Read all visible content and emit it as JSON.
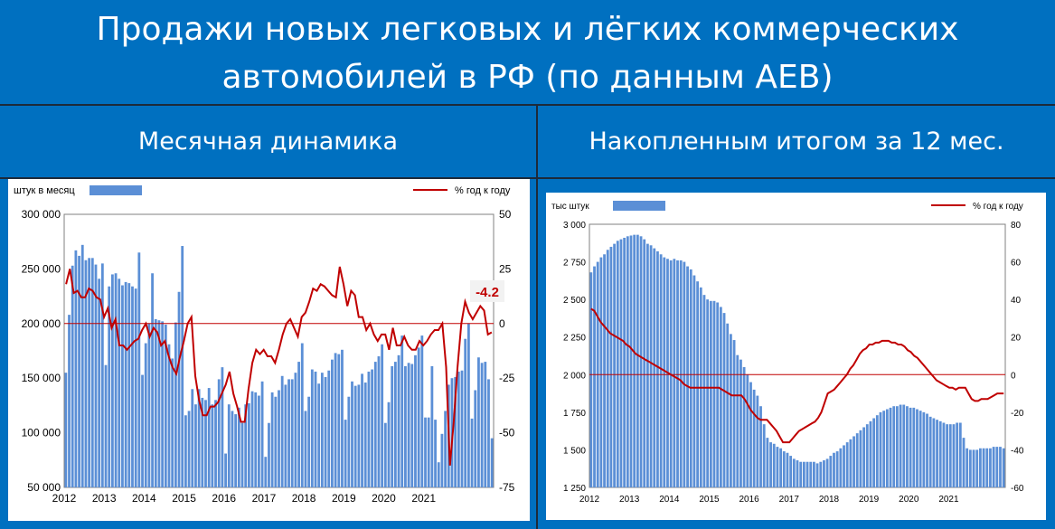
{
  "header": {
    "title_line1": "Продажи новых легковых и лёгких коммерческих",
    "title_line2": "автомобилей в РФ (по данным АЕВ)"
  },
  "left_subtitle": "Месячная динамика",
  "right_subtitle": "Накопленным итогом за 12 мес.",
  "colors": {
    "bar": "#5B8FD6",
    "line": "#C00000",
    "zero_line": "#C00000",
    "background": "#0070C0"
  },
  "chart_data": [
    {
      "type": "bar",
      "title": "",
      "legend_left": "штук в месяц",
      "legend_right": "% год к году",
      "x_ticks": [
        "2012",
        "2013",
        "2014",
        "2015",
        "2016",
        "2017",
        "2018",
        "2019",
        "2020",
        "2021"
      ],
      "y_left_ticks": [
        "300 000",
        "250 000",
        "200 000",
        "150 000",
        "100 000",
        "50 000"
      ],
      "y_right_ticks": [
        "50",
        "25",
        "0",
        "-25",
        "-50",
        "-75"
      ],
      "ylim_left": [
        50000,
        300000
      ],
      "ylim_right": [
        -75,
        50
      ],
      "annotation": "-4.2",
      "series": [
        {
          "name": "штук в месяц",
          "kind": "bar",
          "values": [
            155,
            208,
            253,
            267,
            262,
            272,
            258,
            260,
            260,
            254,
            241,
            255,
            162,
            234,
            245,
            246,
            241,
            235,
            238,
            237,
            234,
            232,
            265,
            153,
            182,
            200,
            246,
            204,
            203,
            202,
            199,
            181,
            168,
            201,
            229,
            271,
            116,
            120,
            140,
            126,
            140,
            132,
            130,
            141,
            126,
            130,
            149,
            160,
            81,
            126,
            120,
            117,
            123,
            109,
            126,
            127,
            138,
            137,
            134,
            147,
            78,
            109,
            137,
            133,
            139,
            152,
            144,
            149,
            149,
            155,
            165,
            182,
            120,
            133,
            158,
            156,
            145,
            155,
            151,
            157,
            167,
            173,
            172,
            176,
            112,
            133,
            147,
            143,
            144,
            154,
            146,
            156,
            158,
            165,
            170,
            181,
            109,
            128,
            161,
            165,
            171,
            189,
            161,
            164,
            163,
            171,
            178,
            189,
            114,
            114,
            161,
            112,
            73,
            99,
            120,
            144,
            150,
            151,
            156,
            157,
            186,
            200,
            113,
            139,
            169,
            164,
            165,
            149,
            95
          ]
        },
        {
          "name": "% год к году",
          "kind": "line",
          "values": [
            18,
            25,
            14,
            15,
            12,
            12,
            16,
            15,
            12,
            11,
            3,
            7,
            -2,
            2,
            -10,
            -10,
            -12,
            -10,
            -8,
            -7,
            -3,
            0,
            -6,
            -2,
            -4,
            -10,
            -8,
            -15,
            -20,
            -23,
            -15,
            -8,
            0,
            3,
            -24,
            -35,
            -42,
            -42,
            -38,
            -38,
            -36,
            -32,
            -28,
            -22,
            -32,
            -38,
            -45,
            -45,
            -30,
            -18,
            -12,
            -14,
            -12,
            -15,
            -15,
            -18,
            -12,
            -5,
            0,
            2,
            -2,
            -6,
            3,
            5,
            10,
            16,
            15,
            18,
            17,
            15,
            13,
            12,
            26,
            18,
            8,
            15,
            13,
            3,
            3,
            -3,
            0,
            -5,
            -8,
            -5,
            -5,
            -12,
            -2,
            -10,
            -10,
            -6,
            -10,
            -12,
            -12,
            -8,
            -10,
            -8,
            -5,
            -3,
            -3,
            0,
            -20,
            -65,
            -45,
            -20,
            0,
            10,
            5,
            2,
            5,
            8,
            6,
            -5,
            -4
          ]
        }
      ]
    },
    {
      "type": "bar",
      "title": "",
      "legend_left": "тыс штук",
      "legend_right": "% год к году",
      "x_ticks": [
        "2012",
        "2013",
        "2014",
        "2015",
        "2016",
        "2017",
        "2018",
        "2019",
        "2020",
        "2021"
      ],
      "y_left_ticks": [
        "3 000",
        "2 750",
        "2 500",
        "2 250",
        "2 000",
        "1 750",
        "1 500",
        "1 250"
      ],
      "y_right_ticks": [
        "80",
        "60",
        "40",
        "20",
        "0",
        "-20",
        "-40",
        "-60"
      ],
      "ylim_left": [
        1250,
        3000
      ],
      "ylim_right": [
        -60,
        80
      ],
      "series": [
        {
          "name": "тыс штук",
          "kind": "bar",
          "values": [
            2680,
            2720,
            2750,
            2780,
            2800,
            2830,
            2850,
            2870,
            2890,
            2900,
            2910,
            2920,
            2925,
            2930,
            2930,
            2920,
            2900,
            2870,
            2860,
            2840,
            2820,
            2800,
            2780,
            2770,
            2760,
            2770,
            2760,
            2760,
            2750,
            2720,
            2700,
            2660,
            2620,
            2580,
            2530,
            2500,
            2490,
            2490,
            2480,
            2450,
            2410,
            2340,
            2270,
            2230,
            2130,
            2100,
            2050,
            2000,
            1950,
            1900,
            1860,
            1790,
            1670,
            1580,
            1550,
            1540,
            1520,
            1510,
            1490,
            1480,
            1460,
            1440,
            1430,
            1420,
            1420,
            1420,
            1420,
            1420,
            1410,
            1420,
            1430,
            1440,
            1460,
            1480,
            1490,
            1510,
            1530,
            1550,
            1570,
            1590,
            1610,
            1630,
            1650,
            1670,
            1690,
            1710,
            1730,
            1750,
            1760,
            1770,
            1780,
            1790,
            1790,
            1800,
            1800,
            1790,
            1780,
            1780,
            1770,
            1760,
            1750,
            1740,
            1720,
            1710,
            1700,
            1690,
            1680,
            1670,
            1670,
            1670,
            1680,
            1680,
            1580,
            1510,
            1500,
            1500,
            1500,
            1510,
            1510,
            1510,
            1510,
            1520,
            1520,
            1520,
            1510
          ]
        },
        {
          "name": "% год к году",
          "kind": "line",
          "values": [
            35,
            34,
            31,
            28,
            26,
            24,
            22,
            21,
            20,
            19,
            18,
            16,
            15,
            13,
            11,
            10,
            9,
            8,
            7,
            6,
            5,
            4,
            3,
            2,
            1,
            0,
            -1,
            -2,
            -3,
            -5,
            -6,
            -7,
            -7,
            -7,
            -7,
            -7,
            -7,
            -7,
            -7,
            -7,
            -7,
            -8,
            -9,
            -10,
            -11,
            -11,
            -11,
            -11,
            -13,
            -16,
            -19,
            -21,
            -23,
            -24,
            -24,
            -24,
            -26,
            -28,
            -30,
            -33,
            -36,
            -36,
            -36,
            -34,
            -32,
            -30,
            -29,
            -28,
            -27,
            -26,
            -25,
            -23,
            -20,
            -15,
            -10,
            -9,
            -8,
            -6,
            -4,
            -2,
            0,
            3,
            5,
            8,
            11,
            13,
            14,
            16,
            16,
            17,
            17,
            18,
            18,
            18,
            17,
            17,
            16,
            16,
            15,
            13,
            12,
            10,
            9,
            7,
            5,
            3,
            1,
            -1,
            -3,
            -4,
            -5,
            -6,
            -7,
            -7,
            -8,
            -7,
            -7,
            -7,
            -10,
            -13,
            -14,
            -14,
            -13,
            -13,
            -13,
            -12,
            -11,
            -10,
            -10,
            -10
          ]
        }
      ]
    }
  ]
}
